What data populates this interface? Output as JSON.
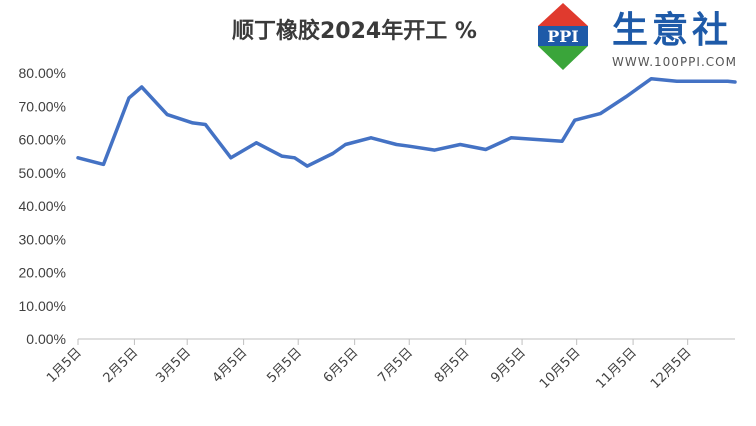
{
  "brand": {
    "name": "生意社",
    "url": "WWW.100PPI.COM",
    "logo_text": "PPI",
    "colors": {
      "red": "#e03a2e",
      "green": "#3aa53a",
      "blue": "#1e5aa8"
    }
  },
  "chart_data": {
    "type": "line",
    "title": "顺丁橡胶2024年开工  %",
    "xlabel": "",
    "ylabel": "",
    "ylim": [
      0,
      80
    ],
    "yticks": [
      "0.00%",
      "10.00%",
      "20.00%",
      "30.00%",
      "40.00%",
      "50.00%",
      "60.00%",
      "70.00%",
      "80.00%"
    ],
    "ytick_values": [
      0,
      10,
      20,
      30,
      40,
      50,
      60,
      70,
      80
    ],
    "xtick_labels": [
      "1月5日",
      "2月5日",
      "3月5日",
      "4月5日",
      "5月5日",
      "6月5日",
      "7月5日",
      "8月5日",
      "9月5日",
      "10月5日",
      "11月5日",
      "12月5日"
    ],
    "grid": false,
    "line_color": "#4472c4",
    "series": [
      {
        "x": [
          "2024-01-05",
          "2024-01-19",
          "2024-02-02",
          "2024-02-09",
          "2024-02-23",
          "2024-03-08",
          "2024-03-15",
          "2024-03-29",
          "2024-04-12",
          "2024-04-26",
          "2024-05-03",
          "2024-05-10",
          "2024-05-24",
          "2024-05-31",
          "2024-06-14",
          "2024-06-28",
          "2024-07-05",
          "2024-07-19",
          "2024-08-02",
          "2024-08-16",
          "2024-08-30",
          "2024-09-13",
          "2024-09-27",
          "2024-10-04",
          "2024-10-18",
          "2024-11-01",
          "2024-11-15",
          "2024-11-29",
          "2024-12-13",
          "2024-12-27",
          "2024-12-31"
        ],
        "values": [
          54.5,
          52.5,
          72.5,
          75.8,
          67.5,
          65.0,
          64.5,
          54.5,
          59.0,
          55.0,
          54.5,
          52.0,
          55.8,
          58.5,
          60.5,
          58.5,
          58.0,
          56.8,
          58.5,
          57.0,
          60.5,
          60.0,
          59.5,
          65.8,
          67.8,
          72.8,
          78.3,
          77.5,
          77.5,
          77.5,
          77.3
        ]
      }
    ]
  }
}
